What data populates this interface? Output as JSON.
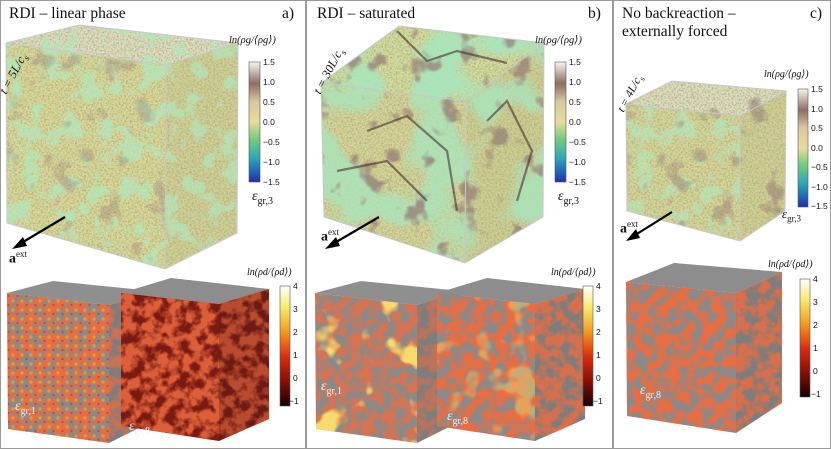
{
  "panels": [
    {
      "letter": "a)",
      "title_lines": [
        "RDI – linear phase"
      ],
      "time_label": "t = 5L/c_s",
      "time_label_text": "t = 5L/c",
      "time_sub": "s",
      "gas_colorbar": {
        "label": "ln(ρg/⟨ρg⟩)",
        "ticks": [
          "1.5",
          "1.0",
          "0.5",
          "0.0",
          "−0.5",
          "−1.0",
          "−1.5"
        ]
      },
      "gas_cube_label": "εgr,3",
      "gas_cube_label_base": "ε",
      "gas_cube_label_sub": "gr,3",
      "aext_label": "a",
      "aext_sup": "ext",
      "dust_colorbar": {
        "label": "ln(ρd/⟨ρd⟩)",
        "ticks": [
          "4",
          "3",
          "2",
          "1",
          "0",
          "−1"
        ]
      },
      "dust_cubes": [
        {
          "label_base": "ε",
          "label_sub": "gr,1"
        },
        {
          "label_base": "ε",
          "label_sub": "gr,8"
        }
      ]
    },
    {
      "letter": "b)",
      "title_lines": [
        "RDI – saturated"
      ],
      "time_label_text": "t = 30L/c",
      "time_sub": "s",
      "gas_colorbar": {
        "label": "ln(ρg/⟨ρg⟩)",
        "ticks": [
          "1.5",
          "1.0",
          "0.5",
          "0.0",
          "−0.5",
          "−1.0",
          "−1.5"
        ]
      },
      "gas_cube_label_base": "ε",
      "gas_cube_label_sub": "gr,3",
      "aext_label": "a",
      "aext_sup": "ext",
      "dust_colorbar": {
        "label": "ln(ρd/⟨ρd⟩)",
        "ticks": [
          "4",
          "3",
          "2",
          "1",
          "0",
          "−1"
        ]
      },
      "dust_cubes": [
        {
          "label_base": "ε",
          "label_sub": "gr,1"
        },
        {
          "label_base": "ε",
          "label_sub": "gr,8"
        }
      ]
    },
    {
      "letter": "c)",
      "title_lines": [
        "No backreaction –",
        "externally forced"
      ],
      "time_label_text": "t = 4L/c",
      "time_sub": "s",
      "gas_colorbar": {
        "label": "ln(ρg/⟨ρg⟩)",
        "ticks": [
          "1.5",
          "1.0",
          "0.5",
          "0.0",
          "−0.5",
          "−1.0",
          "−1.5"
        ]
      },
      "gas_cube_label_base": "ε",
      "gas_cube_label_sub": "gr,3",
      "aext_label": "a",
      "aext_sup": "ext",
      "dust_colorbar": {
        "label": "ln(ρd/⟨ρd⟩)",
        "ticks": [
          "4",
          "3",
          "2",
          "1",
          "0",
          "−1"
        ]
      },
      "dust_cubes": [
        {
          "label_base": "ε",
          "label_sub": "gr,8"
        }
      ]
    }
  ],
  "colors": {
    "gas_top": "#e6d9c8",
    "gas_mid": "#dccb8e",
    "gas_green": "#7fcf8a",
    "gas_dark": "#4a2e2a",
    "dust_bg": "#8a8a8a",
    "dust_red": "#c41a0c",
    "dust_yellow": "#f6d23c"
  }
}
